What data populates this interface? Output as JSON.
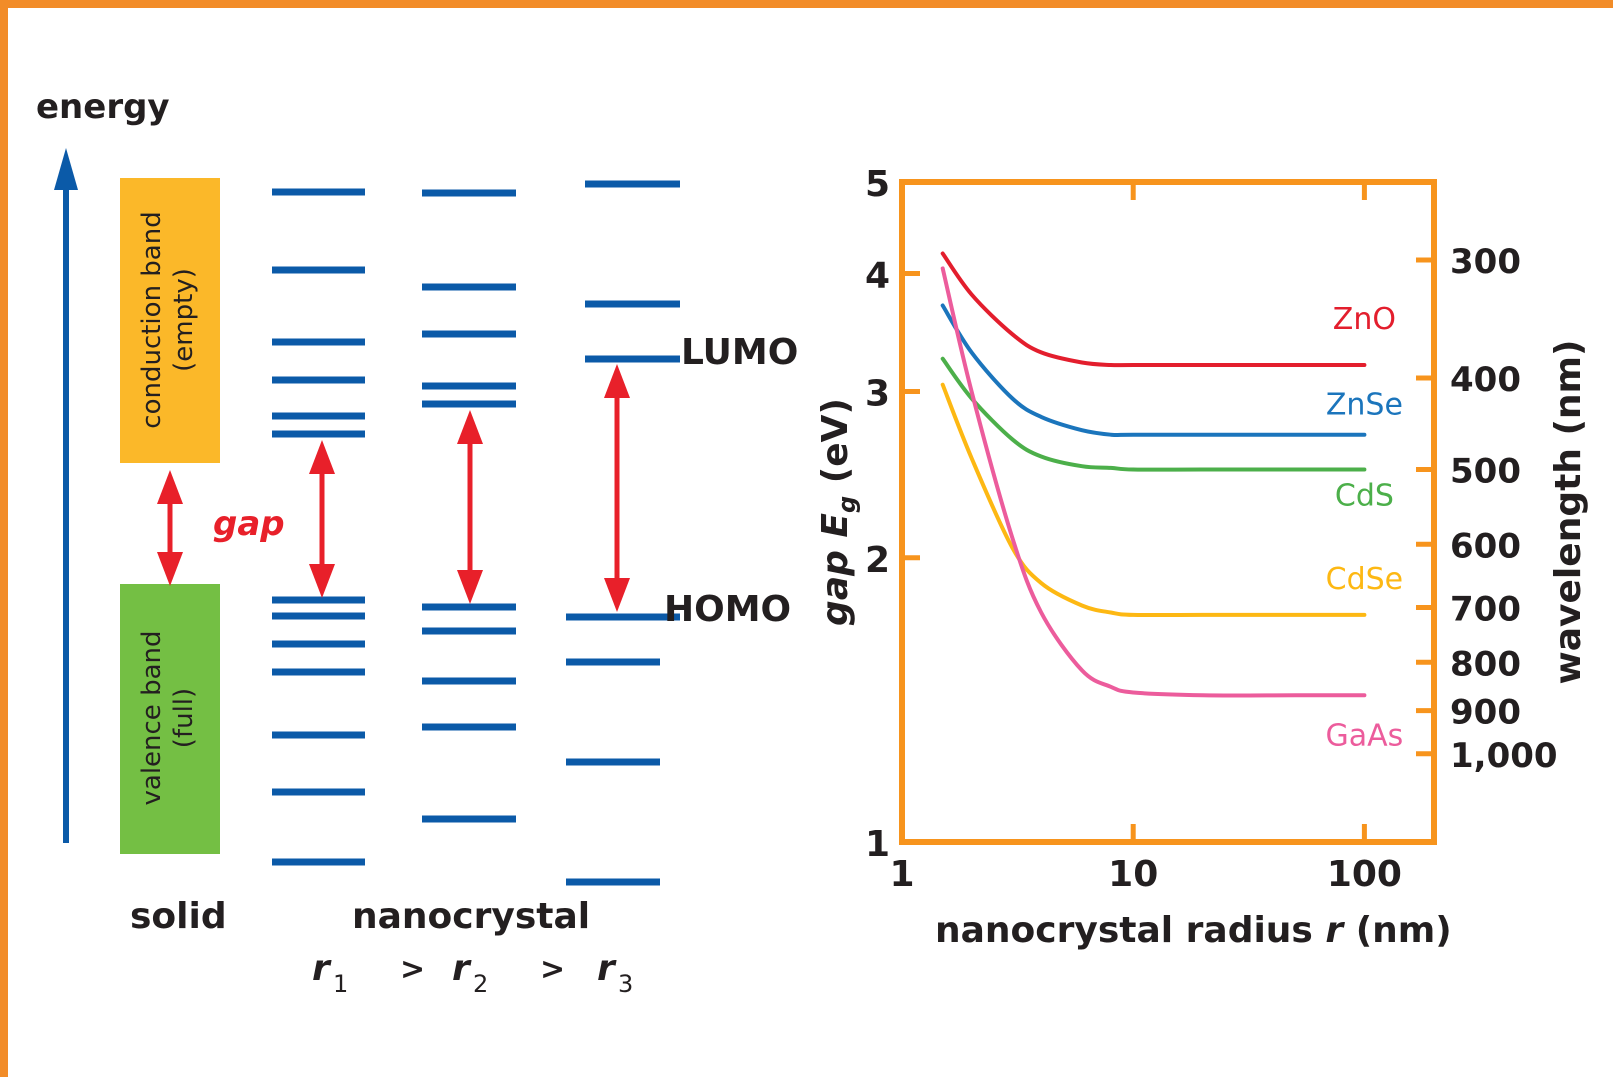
{
  "left_panel": {
    "energy_label": "energy",
    "conduction_band": {
      "line1": "conduction band",
      "line2": "(empty)",
      "color": "#fbb829"
    },
    "valence_band": {
      "line1": "valence band",
      "line2": "(full)",
      "color": "#74bf44"
    },
    "gap_label": "gap",
    "lumo_label": "LUMO",
    "homo_label": "HOMO",
    "solid_label": "solid",
    "nanocrystal_label": "nanocrystal",
    "radius_r1_sub": "1",
    "radius_r2_sub": "2",
    "radius_r3_sub": "3",
    "radius_symbol": "r",
    "gt": ">",
    "level_color": "#0b5aa8",
    "arrow_color": "#e8202a",
    "axis_color": "#0b5aa8"
  },
  "chart_data": {
    "type": "line",
    "xlabel": "nanocrystal radius r (nm)",
    "ylabel": "gap Eg (eV)",
    "y2label": "wavelength (nm)",
    "xscale": "log",
    "yscale": "log",
    "xlim": [
      1,
      200
    ],
    "ylim": [
      1,
      5
    ],
    "xticks": [
      1,
      10,
      100
    ],
    "xtick_labels": [
      "1",
      "10",
      "100"
    ],
    "yticks": [
      1,
      2,
      3,
      4,
      5
    ],
    "ytick_labels": [
      "1",
      "2",
      "3",
      "4",
      "5"
    ],
    "y2ticks": [
      300,
      400,
      500,
      600,
      700,
      800,
      900,
      1000
    ],
    "y2tick_labels": [
      "300",
      "400",
      "500",
      "600",
      "700",
      "800",
      "900",
      "1,000"
    ],
    "frame_color": "#f7941d",
    "series": [
      {
        "name": "ZnO",
        "color": "#e31e2d",
        "x": [
          1.5,
          2,
          3,
          4,
          6,
          8,
          10,
          20,
          50,
          100
        ],
        "y": [
          4.2,
          3.8,
          3.45,
          3.3,
          3.22,
          3.2,
          3.2,
          3.2,
          3.2,
          3.2
        ]
      },
      {
        "name": "ZnSe",
        "color": "#1b75bc",
        "x": [
          1.5,
          2,
          3,
          4,
          6,
          8,
          10,
          20,
          50,
          100
        ],
        "y": [
          3.7,
          3.3,
          2.95,
          2.82,
          2.73,
          2.7,
          2.7,
          2.7,
          2.7,
          2.7
        ]
      },
      {
        "name": "CdS",
        "color": "#4caf4a",
        "x": [
          1.5,
          2,
          3,
          4,
          6,
          8,
          10,
          20,
          50,
          100
        ],
        "y": [
          3.25,
          2.95,
          2.67,
          2.56,
          2.5,
          2.49,
          2.48,
          2.48,
          2.48,
          2.48
        ]
      },
      {
        "name": "CdSe",
        "color": "#fdb813",
        "x": [
          1.5,
          2,
          3,
          4,
          6,
          8,
          10,
          20,
          50,
          100
        ],
        "y": [
          3.05,
          2.55,
          2.05,
          1.88,
          1.78,
          1.75,
          1.74,
          1.74,
          1.74,
          1.74
        ]
      },
      {
        "name": "GaAs",
        "color": "#ec5c9c",
        "x": [
          1.5,
          2,
          3,
          4,
          6,
          8,
          10,
          20,
          50,
          100
        ],
        "y": [
          4.05,
          3.0,
          2.1,
          1.75,
          1.52,
          1.46,
          1.44,
          1.43,
          1.43,
          1.43
        ]
      }
    ]
  }
}
